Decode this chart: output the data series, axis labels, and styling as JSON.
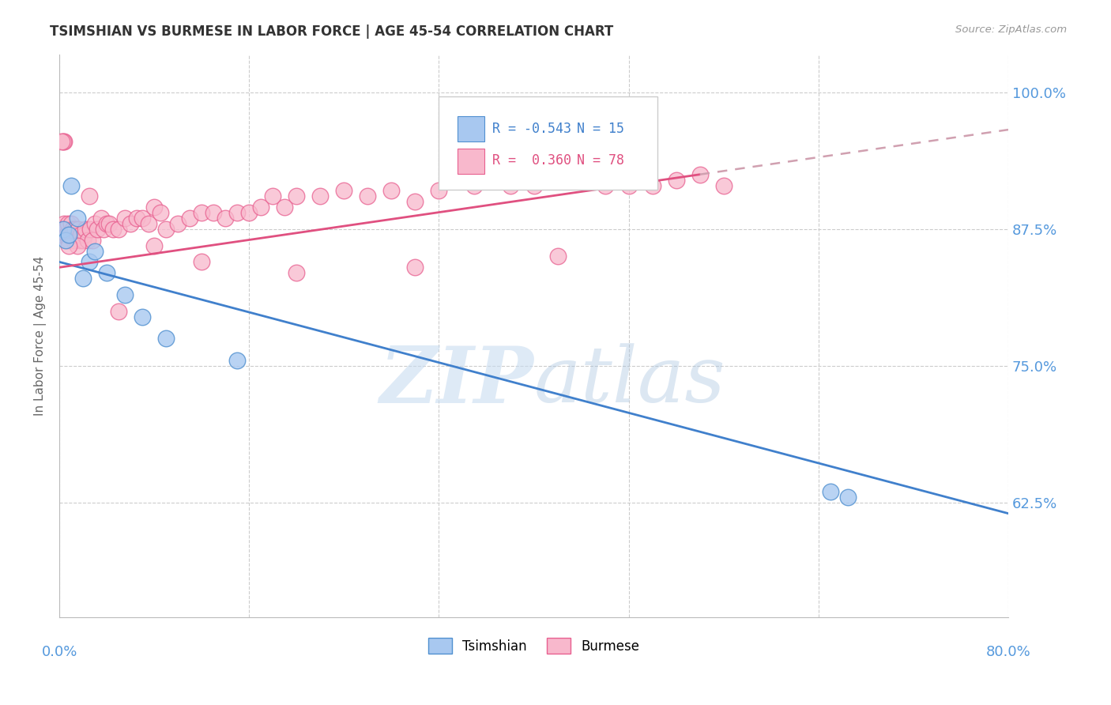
{
  "title": "TSIMSHIAN VS BURMESE IN LABOR FORCE | AGE 45-54 CORRELATION CHART",
  "source": "Source: ZipAtlas.com",
  "ylabel": "In Labor Force | Age 45-54",
  "legend_label1": "Tsimshian",
  "legend_label2": "Burmese",
  "r1": -0.543,
  "n1": 15,
  "r2": 0.36,
  "n2": 78,
  "xmin": 0.0,
  "xmax": 80.0,
  "ymin": 52.0,
  "ymax": 103.5,
  "yticks": [
    62.5,
    75.0,
    87.5,
    100.0
  ],
  "xticks": [
    0.0,
    16.0,
    32.0,
    48.0,
    64.0,
    80.0
  ],
  "color_tsimshian_fill": "#A8C8F0",
  "color_tsimshian_edge": "#5090D0",
  "color_tsimshian_line": "#4080CC",
  "color_burmese_fill": "#F8B8CC",
  "color_burmese_edge": "#E86090",
  "color_burmese_line": "#E05080",
  "color_burmese_dashed": "#D0A0B0",
  "background_color": "#FFFFFF",
  "grid_color": "#CCCCCC",
  "yaxis_color": "#5599DD",
  "xaxis_label_color": "#5599DD",
  "watermark_color": "#C8DCF0",
  "tsimshian_x": [
    0.3,
    0.5,
    0.8,
    1.0,
    1.5,
    2.5,
    4.0,
    5.5,
    9.0,
    15.0,
    3.0,
    2.0,
    7.0,
    65.0,
    66.5
  ],
  "tsimshian_y": [
    87.5,
    86.5,
    87.0,
    91.5,
    88.5,
    84.5,
    83.5,
    81.5,
    77.5,
    75.5,
    85.5,
    83.0,
    79.5,
    63.5,
    63.0
  ],
  "burmese_x": [
    0.2,
    0.3,
    0.4,
    0.5,
    0.6,
    0.7,
    0.8,
    0.9,
    1.0,
    1.1,
    1.2,
    1.3,
    1.5,
    1.6,
    1.7,
    1.8,
    2.0,
    2.1,
    2.2,
    2.4,
    2.6,
    2.8,
    3.0,
    3.2,
    3.5,
    3.7,
    4.0,
    4.2,
    4.5,
    5.0,
    5.5,
    6.0,
    6.5,
    7.0,
    7.5,
    8.0,
    8.5,
    9.0,
    10.0,
    11.0,
    12.0,
    13.0,
    14.0,
    15.0,
    16.0,
    17.0,
    18.0,
    19.0,
    20.0,
    22.0,
    24.0,
    26.0,
    28.0,
    30.0,
    32.0,
    35.0,
    38.0,
    40.0,
    42.0,
    44.0,
    46.0,
    48.0,
    50.0,
    52.0,
    54.0,
    56.0,
    42.0,
    30.0,
    20.0,
    12.0,
    8.0,
    5.0,
    2.5,
    1.5,
    0.8,
    0.4,
    0.3,
    0.2
  ],
  "burmese_y": [
    87.0,
    87.5,
    88.0,
    87.5,
    87.0,
    88.0,
    86.5,
    87.0,
    88.0,
    87.5,
    86.5,
    87.5,
    87.0,
    87.5,
    86.5,
    87.0,
    86.5,
    87.0,
    87.5,
    86.5,
    87.5,
    86.5,
    88.0,
    87.5,
    88.5,
    87.5,
    88.0,
    88.0,
    87.5,
    87.5,
    88.5,
    88.0,
    88.5,
    88.5,
    88.0,
    89.5,
    89.0,
    87.5,
    88.0,
    88.5,
    89.0,
    89.0,
    88.5,
    89.0,
    89.0,
    89.5,
    90.5,
    89.5,
    90.5,
    90.5,
    91.0,
    90.5,
    91.0,
    90.0,
    91.0,
    91.5,
    91.5,
    91.5,
    92.0,
    92.0,
    91.5,
    91.5,
    91.5,
    92.0,
    92.5,
    91.5,
    85.0,
    84.0,
    83.5,
    84.5,
    86.0,
    80.0,
    90.5,
    86.0,
    86.0,
    95.5,
    95.5,
    95.5
  ],
  "tsim_line_x0": 0.0,
  "tsim_line_y0": 84.5,
  "tsim_line_x1": 80.0,
  "tsim_line_y1": 61.5,
  "bur_line_x0": 0.0,
  "bur_line_y0": 84.0,
  "bur_line_x1_solid": 54.0,
  "bur_line_y1_solid": 92.5,
  "bur_line_x1_dashed": 80.0,
  "bur_line_y1_dashed": 96.0
}
